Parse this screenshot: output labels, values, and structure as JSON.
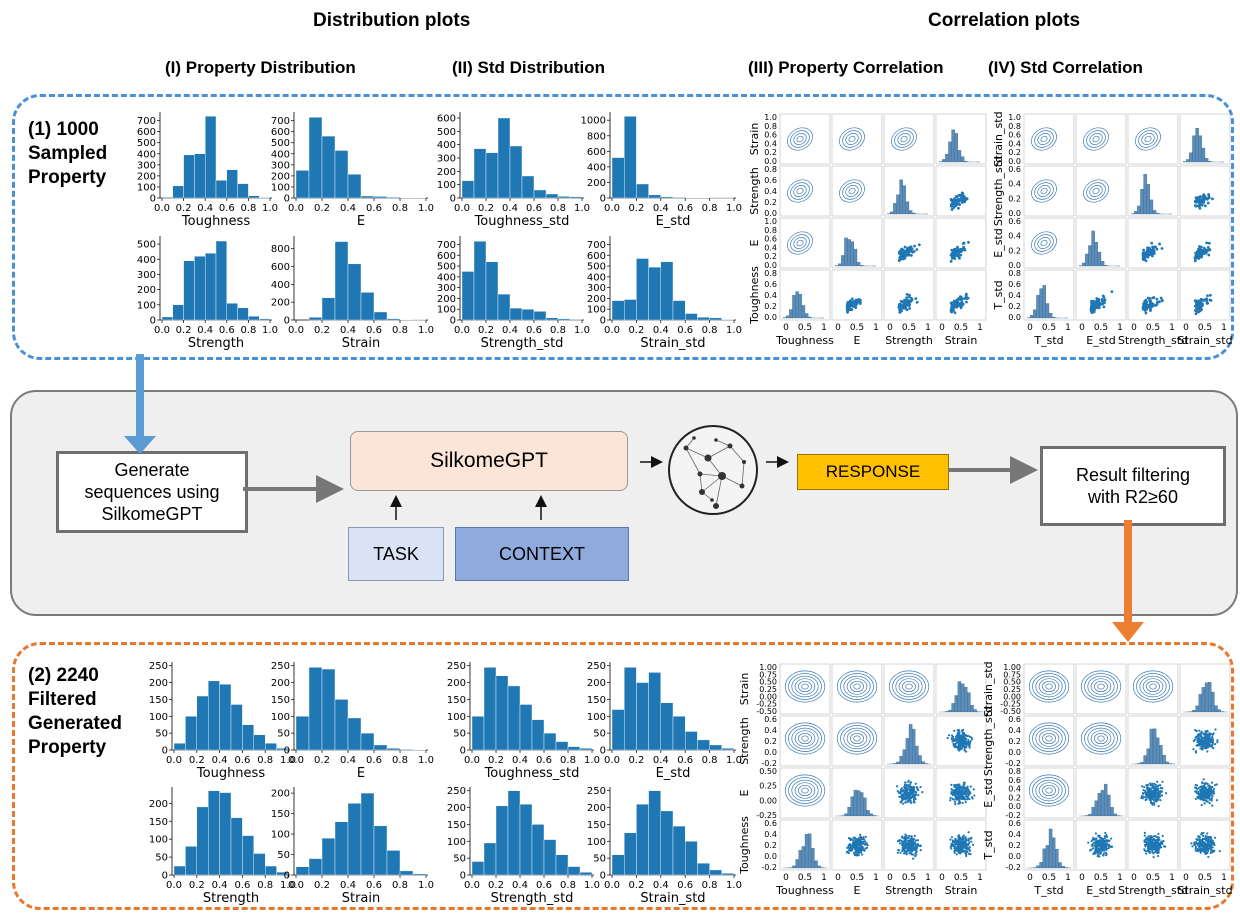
{
  "headers": {
    "distribution": "Distribution plots",
    "correlation": "Correlation plots",
    "col1": "(I) Property Distribution",
    "col2": "(II) Std Distribution",
    "col3": "(III) Property Correlation",
    "col4": "(IV) Std Correlation"
  },
  "row1_label": [
    "(1) 1000",
    "Sampled",
    "Property"
  ],
  "row2_label": [
    "(2) 2240",
    "Filtered",
    "Generated",
    "Property"
  ],
  "pipeline": {
    "generate": "Generate sequences using SilkomeGPT",
    "model": "SilkomeGPT",
    "task": "TASK",
    "context": "CONTEXT",
    "response": "RESPONSE",
    "filter": "Result filtering with R2≥60"
  },
  "colors": {
    "bar": "#1f77b4",
    "blue_dash": "#4a90d9",
    "orange_dash": "#e8782e"
  },
  "histograms_top": [
    {
      "label": "Toughness",
      "yticks": [
        0,
        100,
        200,
        300,
        400,
        500,
        600,
        700
      ],
      "ymax": 760,
      "values": [
        8,
        110,
        390,
        400,
        740,
        160,
        255,
        130,
        20,
        5
      ]
    },
    {
      "label": "E",
      "yticks": [
        0,
        100,
        200,
        300,
        400,
        500,
        600,
        700
      ],
      "ymax": 760,
      "values": [
        250,
        730,
        560,
        430,
        215,
        18,
        14,
        8,
        4,
        2
      ]
    },
    {
      "label": "Toughness_std",
      "yticks": [
        0,
        100,
        200,
        300,
        400,
        500,
        600
      ],
      "ymax": 630,
      "values": [
        130,
        370,
        340,
        600,
        390,
        165,
        60,
        30,
        12,
        10
      ]
    },
    {
      "label": "E_std",
      "yticks": [
        0,
        200,
        400,
        600,
        800,
        1000
      ],
      "ymax": 1080,
      "values": [
        520,
        1050,
        180,
        40,
        15,
        8,
        5,
        3,
        2,
        2
      ]
    },
    {
      "label": "Strength",
      "yticks": [
        0,
        100,
        200,
        300,
        400,
        500
      ],
      "ymax": 540,
      "values": [
        20,
        100,
        390,
        420,
        440,
        520,
        110,
        80,
        25,
        8
      ]
    },
    {
      "label": "Strain",
      "yticks": [
        0,
        200,
        400,
        600,
        800
      ],
      "ymax": 920,
      "values": [
        0,
        30,
        250,
        880,
        630,
        310,
        90,
        15,
        5,
        2
      ]
    },
    {
      "label": "Strength_std",
      "yticks": [
        0,
        100,
        200,
        300,
        400,
        500,
        600,
        700
      ],
      "ymax": 760,
      "values": [
        450,
        730,
        540,
        240,
        110,
        100,
        80,
        20,
        12,
        6
      ]
    },
    {
      "label": "Strain_std",
      "yticks": [
        0,
        100,
        200,
        300,
        400,
        500,
        600,
        700
      ],
      "ymax": 760,
      "values": [
        180,
        190,
        570,
        490,
        540,
        180,
        60,
        25,
        20,
        5
      ]
    }
  ],
  "histograms_bottom": [
    {
      "label": "Toughness",
      "yticks": [
        0,
        50,
        100,
        150,
        200,
        250
      ],
      "ymax": 255,
      "values": [
        20,
        100,
        160,
        205,
        195,
        135,
        75,
        45,
        20,
        5
      ]
    },
    {
      "label": "E",
      "yticks": [
        0,
        50,
        100,
        150,
        200,
        250
      ],
      "ymax": 255,
      "values": [
        100,
        245,
        240,
        150,
        95,
        50,
        15,
        5,
        2,
        1
      ]
    },
    {
      "label": "Toughness_std",
      "yticks": [
        0,
        50,
        100,
        150,
        200,
        250
      ],
      "ymax": 255,
      "values": [
        100,
        245,
        220,
        190,
        135,
        90,
        50,
        25,
        10,
        5
      ]
    },
    {
      "label": "E_std",
      "yticks": [
        0,
        50,
        100,
        150,
        200,
        250
      ],
      "ymax": 255,
      "values": [
        120,
        245,
        200,
        230,
        140,
        100,
        55,
        30,
        15,
        5
      ]
    },
    {
      "label": "Strength",
      "yticks": [
        0,
        50,
        100,
        150,
        200
      ],
      "ymax": 240,
      "values": [
        25,
        80,
        190,
        235,
        230,
        160,
        110,
        60,
        25,
        8
      ]
    },
    {
      "label": "Strain",
      "yticks": [
        0,
        50,
        100,
        150,
        200
      ],
      "ymax": 210,
      "values": [
        20,
        40,
        90,
        130,
        175,
        200,
        120,
        60,
        10,
        3
      ]
    },
    {
      "label": "Strength_std",
      "yticks": [
        0,
        50,
        100,
        150,
        200,
        250
      ],
      "ymax": 255,
      "values": [
        40,
        95,
        205,
        250,
        210,
        150,
        105,
        60,
        25,
        8
      ]
    },
    {
      "label": "Strain_std",
      "yticks": [
        0,
        50,
        100,
        150,
        200,
        250
      ],
      "ymax": 255,
      "values": [
        60,
        125,
        210,
        250,
        190,
        145,
        100,
        35,
        15,
        5
      ]
    }
  ],
  "hist_xticks": [
    "0.0",
    "0.2",
    "0.4",
    "0.6",
    "0.8",
    "1.0"
  ],
  "pairplots": [
    {
      "rows": [
        "Strain",
        "Strength",
        "E",
        "Toughness"
      ],
      "cols": [
        "Toughness",
        "E",
        "Strength",
        "Strain"
      ],
      "yticks": [
        [
          "1.0",
          "0.8",
          "0.6",
          "0.4",
          "0.2",
          "0.0"
        ],
        [
          "0.8",
          "0.6",
          "0.4",
          "0.2",
          "0.0"
        ],
        [
          "1.0",
          "0.8",
          "0.6",
          "0.4",
          "0.2",
          "0.0"
        ],
        [
          "0.8",
          "0.6",
          "0.4",
          "0.2",
          "0.0"
        ]
      ],
      "xticks": [
        "0",
        "0.5",
        "1"
      ]
    },
    {
      "rows": [
        "Strain_std",
        "Strength_std",
        "E_std",
        "T_std"
      ],
      "cols": [
        "T_std",
        "E_std",
        "Strength_std",
        "Strain_std"
      ],
      "yticks": [
        [
          "1.0",
          "0.8",
          "0.6",
          "0.4",
          "0.2",
          "0.0"
        ],
        [
          "0.6",
          "0.4",
          "0.2",
          "0.0"
        ],
        [
          "0.6",
          "0.4",
          "0.2",
          "0.0"
        ],
        [
          "0.8",
          "0.6",
          "0.4",
          "0.2",
          "0.0"
        ]
      ],
      "xticks": [
        "0",
        "0.5",
        "1"
      ]
    },
    {
      "rows": [
        "Strain",
        "Strength",
        "E",
        "Toughness"
      ],
      "cols": [
        "Toughness",
        "E",
        "Strength",
        "Strain"
      ],
      "yticks": [
        [
          "1.00",
          "0.75",
          "0.50",
          "0.25",
          "0.00",
          "-0.25",
          "-0.50"
        ],
        [
          "0.6",
          "0.4",
          "0.2",
          "0.0",
          "-0.2"
        ],
        [
          "0.50",
          "0.25",
          "0.00",
          "-0.25"
        ],
        [
          "0.6",
          "0.4",
          "0.2",
          "0.0",
          "-0.2"
        ]
      ],
      "xticks": [
        "0",
        "0.5",
        "1"
      ]
    },
    {
      "rows": [
        "Strain_std",
        "Strength_std",
        "E_std",
        "T_std"
      ],
      "cols": [
        "T_std",
        "E_std",
        "Strength_std",
        "Strain_std"
      ],
      "yticks": [
        [
          "1.00",
          "0.75",
          "0.50",
          "0.25",
          "0.00",
          "-0.25",
          "-0.50"
        ],
        [
          "0.6",
          "0.4",
          "0.2",
          "0.0",
          "-0.2"
        ],
        [
          "0.8",
          "0.6",
          "0.4",
          "0.2",
          "0.0",
          "-0.2"
        ],
        [
          "0.6",
          "0.4",
          "0.2",
          "0.0",
          "-0.2"
        ]
      ],
      "xticks": [
        "0",
        "0.5",
        "1"
      ]
    }
  ]
}
